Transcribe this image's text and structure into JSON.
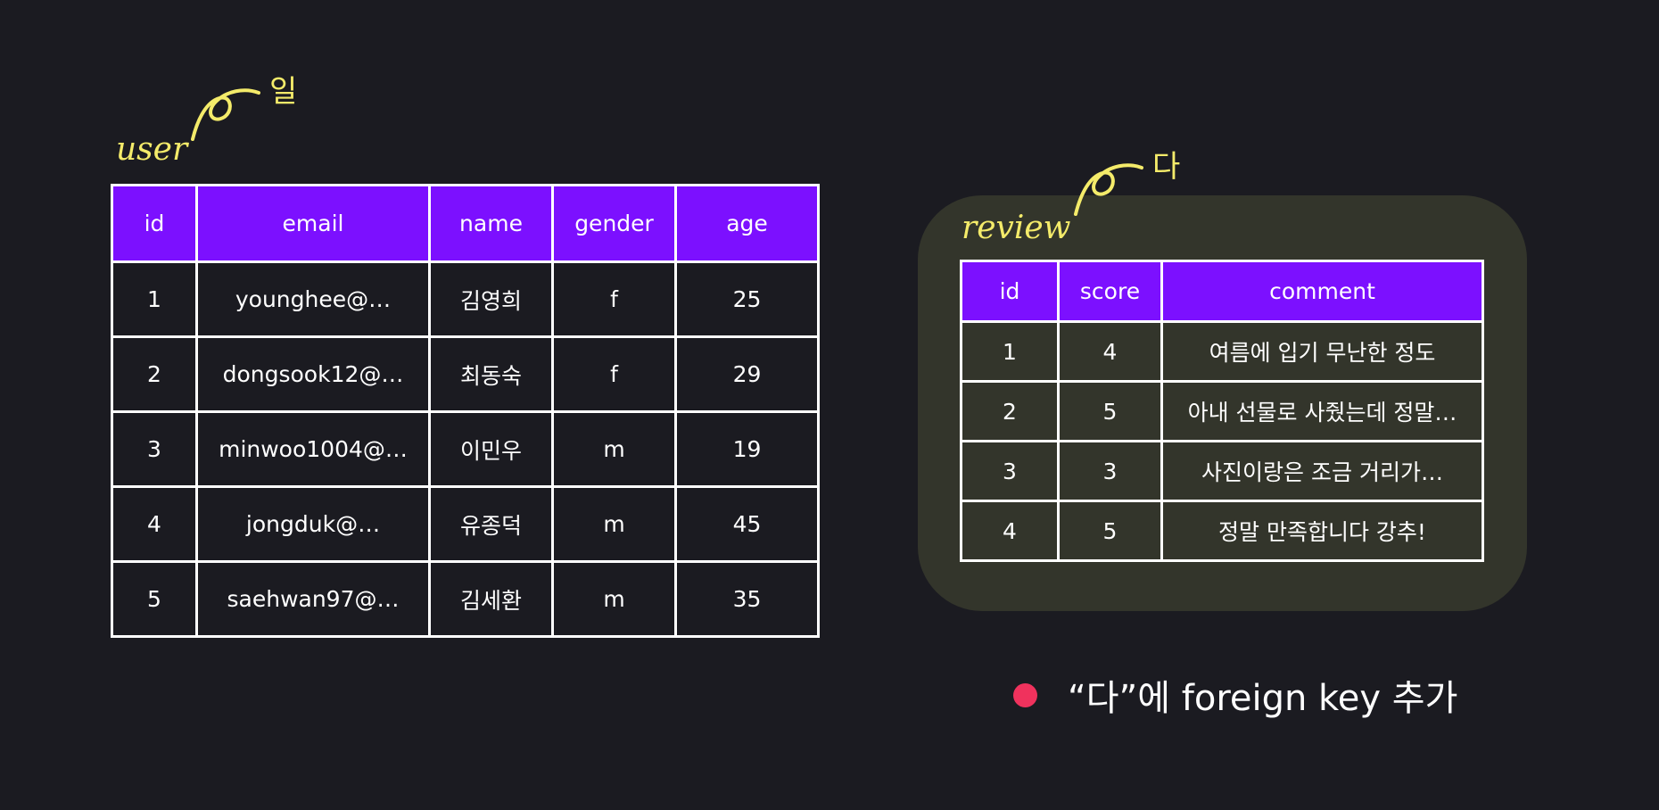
{
  "user": {
    "label": "user",
    "cardinality": "일",
    "columns": [
      "id",
      "email",
      "name",
      "gender",
      "age"
    ],
    "rows": [
      [
        "1",
        "younghee@…",
        "김영희",
        "f",
        "25"
      ],
      [
        "2",
        "dongsook12@…",
        "최동숙",
        "f",
        "29"
      ],
      [
        "3",
        "minwoo1004@…",
        "이민우",
        "m",
        "19"
      ],
      [
        "4",
        "jongduk@…",
        "유종덕",
        "m",
        "45"
      ],
      [
        "5",
        "saehwan97@…",
        "김세환",
        "m",
        "35"
      ]
    ]
  },
  "review": {
    "label": "review",
    "cardinality": "다",
    "columns": [
      "id",
      "score",
      "comment"
    ],
    "rows": [
      [
        "1",
        "4",
        "여름에 입기 무난한 정도"
      ],
      [
        "2",
        "5",
        "아내 선물로 사줬는데 정말…"
      ],
      [
        "3",
        "3",
        "사진이랑은 조금 거리가…"
      ],
      [
        "4",
        "5",
        "정말 만족합니다 강추!"
      ]
    ]
  },
  "note": {
    "text": "“다”에 foreign key 추가",
    "bullet_color": "#f0325d"
  },
  "colors": {
    "background": "#1b1b21",
    "header": "#7c10ff",
    "panel": "#33352b",
    "annotation": "#f4eb6a"
  }
}
